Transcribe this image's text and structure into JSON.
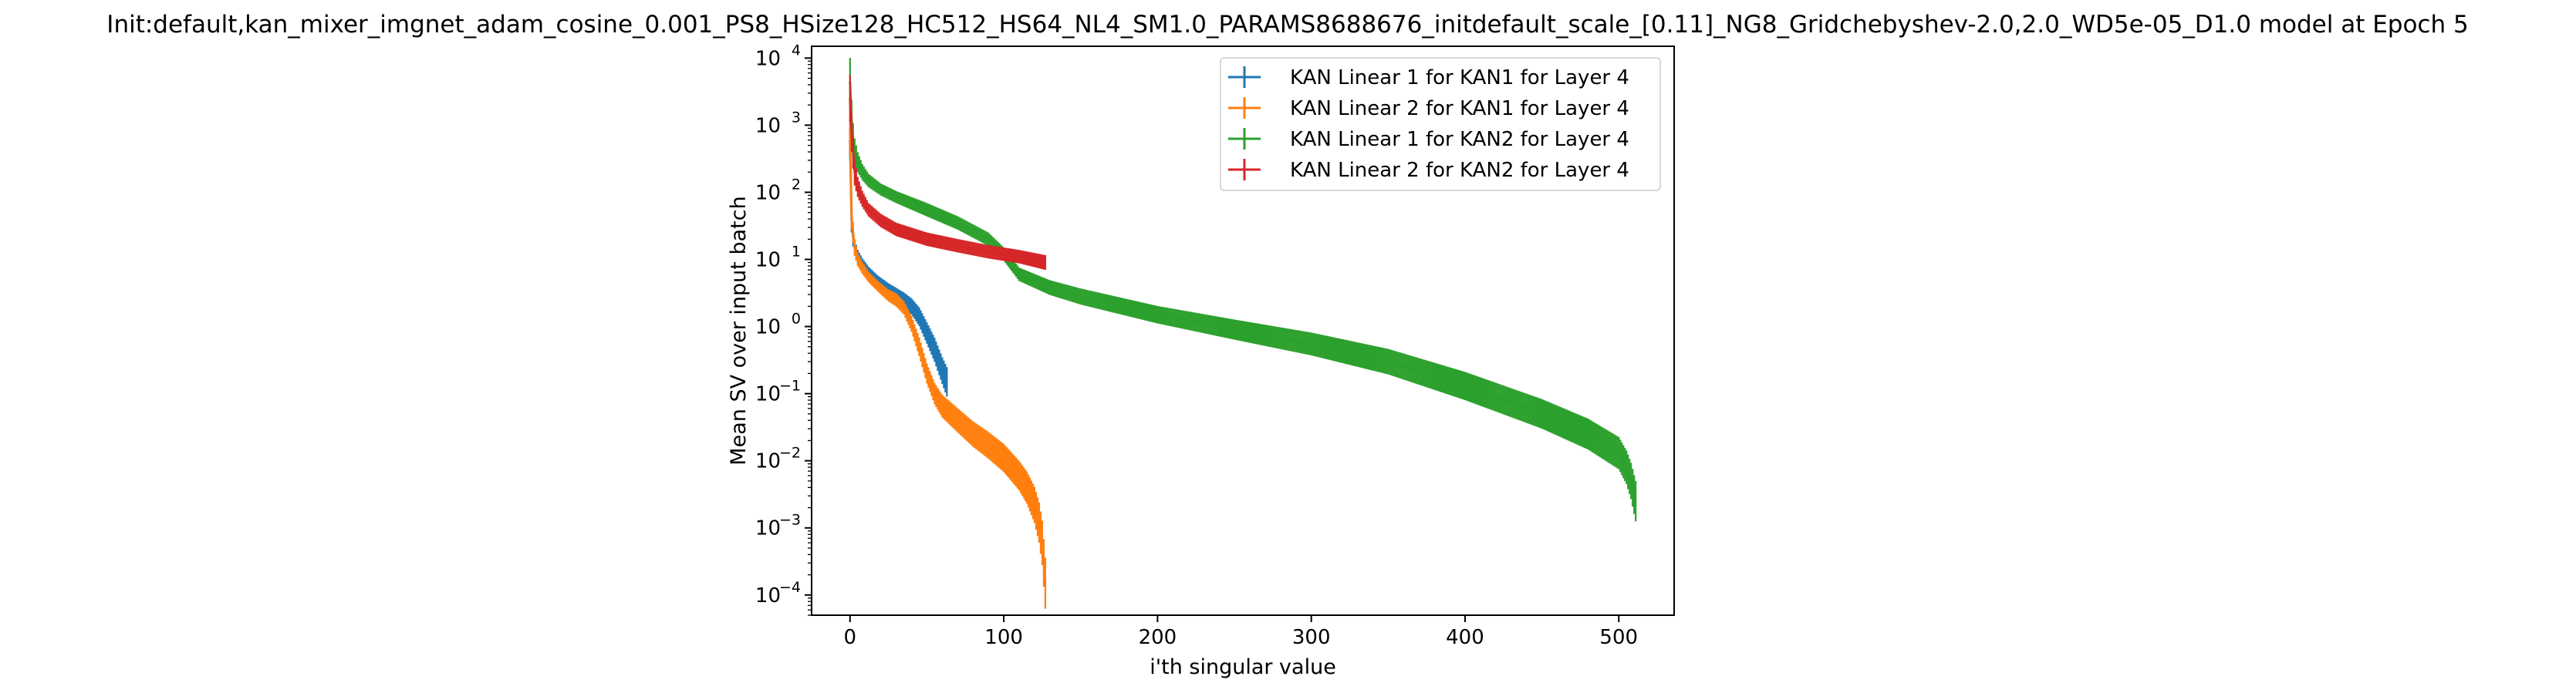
{
  "chart_data": {
    "type": "line",
    "title": "Init:default,kan_mixer_imgnet_adam_cosine_0.001_PS8_HSize128_HC512_HS64_NL4_SM1.0_PARAMS8688676_initdefault_scale_[0.11]_NG8_Gridchebyshev-2.0,2.0_WD5e-05_D1.0 model at Epoch 5",
    "xlabel": "i'th singular value",
    "ylabel": "Mean SV over input batch",
    "x_scale": "linear",
    "y_scale": "log",
    "xlim": [
      -25,
      536
    ],
    "ylim": [
      5e-05,
      15000
    ],
    "x_ticks": [
      0,
      100,
      200,
      300,
      400,
      500
    ],
    "y_ticks": [
      {
        "value": 0.0001,
        "label": "10^-4"
      },
      {
        "value": 0.001,
        "label": "10^-3"
      },
      {
        "value": 0.01,
        "label": "10^-2"
      },
      {
        "value": 0.1,
        "label": "10^-1"
      },
      {
        "value": 1,
        "label": "10^0"
      },
      {
        "value": 10,
        "label": "10^1"
      },
      {
        "value": 100,
        "label": "10^2"
      },
      {
        "value": 1000,
        "label": "10^3"
      },
      {
        "value": 10000,
        "label": "10^4"
      }
    ],
    "grid": false,
    "legend_position": "top-right",
    "series": [
      {
        "name": "KAN Linear 1 for KAN1 for Layer 4",
        "color": "#1f77b4",
        "x": [
          0,
          1,
          2,
          3,
          5,
          8,
          12,
          18,
          25,
          30,
          35,
          40,
          45,
          50,
          55,
          60,
          63
        ],
        "y": [
          600,
          40,
          22,
          15,
          11,
          8.5,
          6.5,
          4.8,
          3.6,
          3.0,
          2.5,
          2.0,
          1.4,
          0.8,
          0.45,
          0.22,
          0.15
        ],
        "err": [
          0.3,
          0.2,
          0.15,
          0.12,
          0.1,
          0.09,
          0.08,
          0.08,
          0.09,
          0.1,
          0.11,
          0.12,
          0.14,
          0.16,
          0.18,
          0.2,
          0.22
        ]
      },
      {
        "name": "KAN Linear 2 for KAN1 for Layer 4",
        "color": "#ff7f0e",
        "x": [
          0,
          1,
          2,
          3,
          5,
          8,
          12,
          18,
          25,
          30,
          35,
          40,
          45,
          50,
          55,
          60,
          70,
          80,
          90,
          100,
          110,
          115,
          120,
          123,
          125,
          127
        ],
        "y": [
          900,
          45,
          25,
          15,
          10,
          7.5,
          5.5,
          4.0,
          2.9,
          2.5,
          1.9,
          1.1,
          0.5,
          0.2,
          0.1,
          0.065,
          0.04,
          0.025,
          0.017,
          0.011,
          0.006,
          0.004,
          0.0022,
          0.0012,
          0.0006,
          0.00015
        ],
        "err": [
          0.3,
          0.2,
          0.15,
          0.12,
          0.1,
          0.09,
          0.08,
          0.08,
          0.09,
          0.1,
          0.1,
          0.12,
          0.14,
          0.15,
          0.16,
          0.17,
          0.18,
          0.19,
          0.2,
          0.21,
          0.22,
          0.24,
          0.27,
          0.3,
          0.33,
          0.38
        ]
      },
      {
        "name": "KAN Linear 1 for KAN2 for Layer 4",
        "color": "#2ca02c",
        "x": [
          0,
          1,
          2,
          3,
          5,
          8,
          12,
          20,
          30,
          50,
          70,
          90,
          100,
          110,
          130,
          150,
          200,
          250,
          300,
          350,
          400,
          450,
          480,
          500,
          505,
          508,
          511
        ],
        "y": [
          4500,
          1200,
          600,
          400,
          280,
          200,
          150,
          110,
          85,
          55,
          35,
          20,
          12,
          6,
          3.8,
          2.8,
          1.5,
          0.9,
          0.55,
          0.3,
          0.13,
          0.05,
          0.025,
          0.013,
          0.008,
          0.005,
          0.0025
        ],
        "err": [
          0.35,
          0.3,
          0.25,
          0.2,
          0.15,
          0.12,
          0.1,
          0.09,
          0.09,
          0.1,
          0.1,
          0.1,
          0.1,
          0.1,
          0.11,
          0.12,
          0.13,
          0.15,
          0.17,
          0.19,
          0.21,
          0.22,
          0.23,
          0.24,
          0.25,
          0.27,
          0.3
        ]
      },
      {
        "name": "KAN Linear 2 for KAN2 for Layer 4",
        "color": "#d62728",
        "x": [
          0,
          1,
          2,
          3,
          5,
          8,
          12,
          20,
          30,
          50,
          70,
          90,
          110,
          127
        ],
        "y": [
          2500,
          800,
          400,
          200,
          120,
          80,
          55,
          38,
          28,
          20,
          16,
          13,
          11,
          9
        ],
        "err": [
          0.35,
          0.3,
          0.25,
          0.2,
          0.15,
          0.12,
          0.1,
          0.1,
          0.1,
          0.1,
          0.1,
          0.1,
          0.1,
          0.11
        ]
      }
    ]
  }
}
